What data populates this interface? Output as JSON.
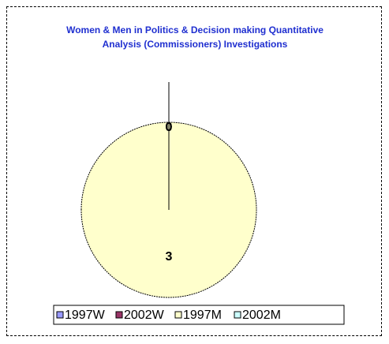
{
  "chart_data": {
    "type": "pie",
    "title": "Women & Men in Politics & Decision making Quantitative Analysis (Commissioners) Investigations",
    "categories": [
      "1997W",
      "2002W",
      "1997M",
      "2002M"
    ],
    "values": [
      0,
      0,
      3,
      0
    ],
    "colors": [
      "#9999ff",
      "#993366",
      "#ffffcc",
      "#ccffff"
    ],
    "legend": "bottom"
  }
}
